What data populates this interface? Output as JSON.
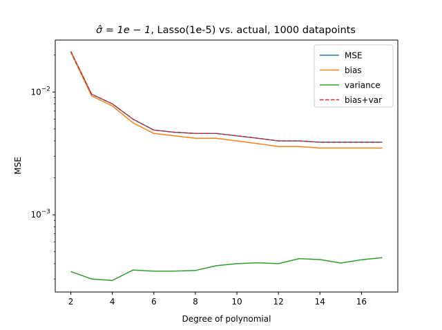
{
  "chart_data": {
    "type": "line",
    "title_prefix": "σ̂ = 1e − 1",
    "title_rest": ", Lasso(1e-5) vs. actual, 1000 datapoints",
    "xlabel": "Degree of polynomial",
    "ylabel": "MSE",
    "yscale": "log",
    "xlim": [
      1.25,
      17.75
    ],
    "ylim": [
      0.000235,
      0.0265
    ],
    "xticks": [
      2,
      4,
      6,
      8,
      10,
      12,
      14,
      16
    ],
    "xtick_labels": [
      "2",
      "4",
      "6",
      "8",
      "10",
      "12",
      "14",
      "16"
    ],
    "yticks": [
      0.001,
      0.01
    ],
    "legend_position": "top-right",
    "x": [
      2,
      3,
      4,
      5,
      6,
      7,
      8,
      9,
      10,
      11,
      12,
      13,
      14,
      15,
      16,
      17
    ],
    "series": [
      {
        "name": "MSE",
        "color": "#1f77b4",
        "dash": "solid",
        "values": [
          0.0214,
          0.0096,
          0.008,
          0.006,
          0.0049,
          0.0047,
          0.0046,
          0.0046,
          0.0044,
          0.0042,
          0.004,
          0.004,
          0.0039,
          0.0039,
          0.0039,
          0.0039
        ]
      },
      {
        "name": "bias",
        "color": "#ff7f0e",
        "dash": "solid",
        "values": [
          0.0211,
          0.0093,
          0.0077,
          0.0056,
          0.0046,
          0.0044,
          0.0042,
          0.0042,
          0.004,
          0.0038,
          0.0036,
          0.0036,
          0.0035,
          0.0035,
          0.0035,
          0.0035
        ]
      },
      {
        "name": "variance",
        "color": "#2ca02c",
        "dash": "solid",
        "values": [
          0.000345,
          0.0003,
          0.000292,
          0.000355,
          0.000348,
          0.000348,
          0.000352,
          0.000385,
          0.0004,
          0.000407,
          0.0004,
          0.00044,
          0.000432,
          0.000405,
          0.00043,
          0.000447
        ]
      },
      {
        "name": "bias+var",
        "color": "#d62728",
        "dash": "dashed",
        "values": [
          0.0214,
          0.0096,
          0.008,
          0.006,
          0.0049,
          0.0047,
          0.0046,
          0.0046,
          0.0044,
          0.0042,
          0.004,
          0.004,
          0.0039,
          0.0039,
          0.0039,
          0.0039
        ]
      }
    ]
  }
}
